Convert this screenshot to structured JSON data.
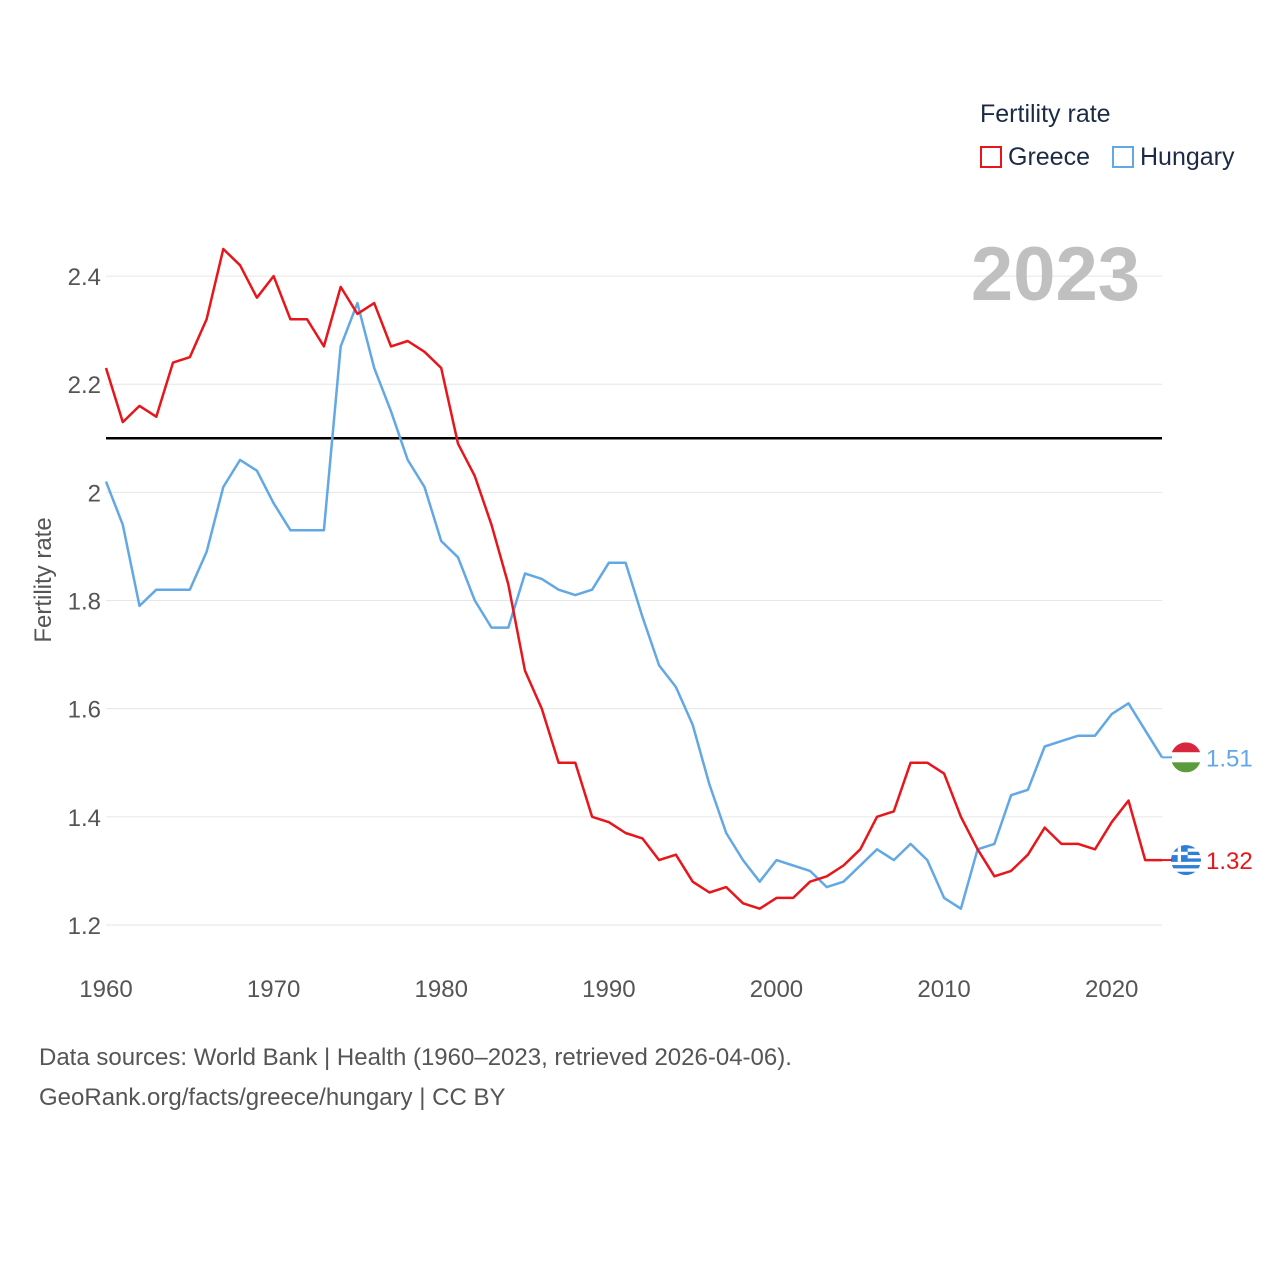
{
  "chart_data": {
    "type": "line",
    "title": "",
    "year_label": "2023",
    "ylabel": "Fertility rate",
    "xlabel": "",
    "xlim": [
      1960,
      2023
    ],
    "ylim": [
      1.15,
      2.5
    ],
    "x_ticks": [
      "1960",
      "1970",
      "1980",
      "1990",
      "2000",
      "2010",
      "2020"
    ],
    "y_ticks": [
      "1.2",
      "1.4",
      "1.6",
      "1.8",
      "2",
      "2.2",
      "2.4"
    ],
    "reference_line": 2.1,
    "legend": {
      "title": "Fertility rate",
      "position": "top-right"
    },
    "x": [
      1960,
      1961,
      1962,
      1963,
      1964,
      1965,
      1966,
      1967,
      1968,
      1969,
      1970,
      1971,
      1972,
      1973,
      1974,
      1975,
      1976,
      1977,
      1978,
      1979,
      1980,
      1981,
      1982,
      1983,
      1984,
      1985,
      1986,
      1987,
      1988,
      1989,
      1990,
      1991,
      1992,
      1993,
      1994,
      1995,
      1996,
      1997,
      1998,
      1999,
      2000,
      2001,
      2002,
      2003,
      2004,
      2005,
      2006,
      2007,
      2008,
      2009,
      2010,
      2011,
      2012,
      2013,
      2014,
      2015,
      2016,
      2017,
      2018,
      2019,
      2020,
      2021,
      2022,
      2023
    ],
    "series": [
      {
        "name": "Greece",
        "color": "#e8161b",
        "end_label": "1.32",
        "flag": "greece-flag",
        "values": [
          2.23,
          2.13,
          2.16,
          2.14,
          2.24,
          2.25,
          2.32,
          2.45,
          2.42,
          2.36,
          2.4,
          2.32,
          2.32,
          2.27,
          2.38,
          2.33,
          2.35,
          2.27,
          2.28,
          2.26,
          2.23,
          2.09,
          2.03,
          1.94,
          1.83,
          1.67,
          1.6,
          1.5,
          1.5,
          1.4,
          1.39,
          1.37,
          1.36,
          1.32,
          1.33,
          1.28,
          1.26,
          1.27,
          1.24,
          1.23,
          1.25,
          1.25,
          1.28,
          1.29,
          1.31,
          1.34,
          1.4,
          1.41,
          1.5,
          1.5,
          1.48,
          1.4,
          1.34,
          1.29,
          1.3,
          1.33,
          1.38,
          1.35,
          1.35,
          1.34,
          1.39,
          1.43,
          1.32,
          1.32
        ]
      },
      {
        "name": "Hungary",
        "color": "#62a8e5",
        "end_label": "1.51",
        "flag": "hungary-flag",
        "values": [
          2.02,
          1.94,
          1.79,
          1.82,
          1.82,
          1.82,
          1.89,
          2.01,
          2.06,
          2.04,
          1.98,
          1.93,
          1.93,
          1.93,
          2.27,
          2.35,
          2.23,
          2.15,
          2.06,
          2.01,
          1.91,
          1.88,
          1.8,
          1.75,
          1.75,
          1.85,
          1.84,
          1.82,
          1.81,
          1.82,
          1.87,
          1.87,
          1.77,
          1.68,
          1.64,
          1.57,
          1.46,
          1.37,
          1.32,
          1.28,
          1.32,
          1.31,
          1.3,
          1.27,
          1.28,
          1.31,
          1.34,
          1.32,
          1.35,
          1.32,
          1.25,
          1.23,
          1.34,
          1.35,
          1.44,
          1.45,
          1.53,
          1.54,
          1.55,
          1.55,
          1.59,
          1.61,
          1.56,
          1.51
        ]
      }
    ]
  },
  "footer": {
    "sources": "Data sources: World Bank | Health (1960–2023, retrieved 2026-04-06).",
    "credit": "GeoRank.org/facts/greece/hungary | CC BY"
  }
}
